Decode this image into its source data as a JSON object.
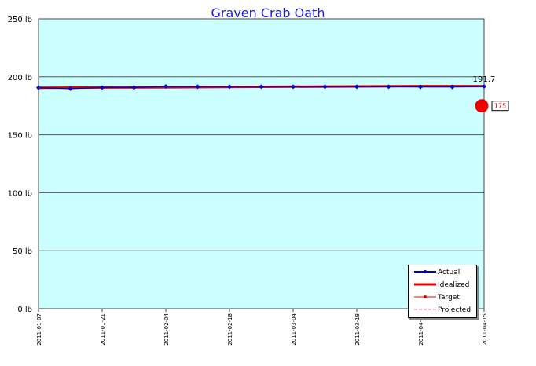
{
  "chart_data": {
    "type": "line",
    "title": "Graven Crab Oath",
    "y_unit": "lb",
    "ylim": [
      0,
      250
    ],
    "yticks": [
      "250 lb",
      "200 lb",
      "150 lb",
      "100 lb",
      "50 lb",
      "0 lb"
    ],
    "ytick_values": [
      250,
      200,
      150,
      100,
      50,
      0
    ],
    "xlim": [
      "2011-01-07",
      "2011-04-15"
    ],
    "xticks": [
      "2011-01-07",
      "2011-01-21",
      "2011-02-04",
      "2011-02-18",
      "2011-03-04",
      "2011-03-18",
      "2011-04-01",
      "2011-04-15"
    ],
    "series": [
      {
        "name": "Actual",
        "color": "#0000cc",
        "x": [
          "2011-01-07",
          "2011-01-14",
          "2011-01-21",
          "2011-01-28",
          "2011-02-04",
          "2011-02-11",
          "2011-02-18",
          "2011-02-25",
          "2011-03-04",
          "2011-03-11",
          "2011-03-18",
          "2011-03-25",
          "2011-04-01",
          "2011-04-08",
          "2011-04-15"
        ],
        "values": [
          190.6,
          189.8,
          190.8,
          190.8,
          191.7,
          191.5,
          191.5,
          191.5,
          191.5,
          191.5,
          191.5,
          191.5,
          191.3,
          191.3,
          191.7
        ]
      },
      {
        "name": "Idealized",
        "color": "#dd0000",
        "x": [
          "2011-01-07",
          "2011-02-04",
          "2011-04-01",
          "2011-04-15"
        ],
        "values": [
          190.6,
          191.0,
          192.0,
          192.0
        ]
      },
      {
        "name": "Target",
        "color": "#ee0000",
        "x": [
          "2011-04-15"
        ],
        "values": [
          175
        ]
      },
      {
        "name": "Projected",
        "color": "#ff66cc",
        "x": [],
        "values": []
      }
    ],
    "annotations": {
      "last_value": "191.7",
      "target_label": "175"
    },
    "background": "#ccffff",
    "grid": true,
    "legend_position": "bottom-right"
  }
}
